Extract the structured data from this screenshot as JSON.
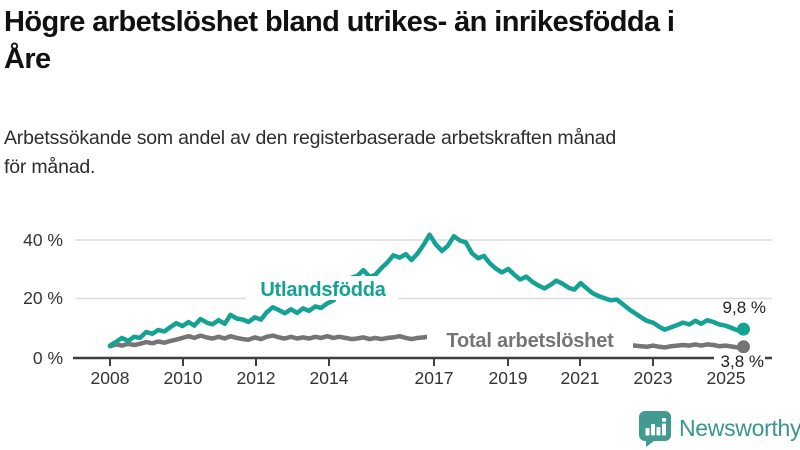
{
  "header": {
    "title_line1": "Högre arbetslöshet bland utrikes- än inrikesfödda i",
    "title_line2": "Åre",
    "subtitle_line1": "Arbetssökande som andel av den registerbaserade arbetskraften månad",
    "subtitle_line2": "för månad."
  },
  "chart_data": {
    "type": "line",
    "unit": "percent of registered labour force, monthly",
    "grid": "horizontal",
    "ylim": [
      0,
      45
    ],
    "xlim": [
      2007.8,
      2025.7
    ],
    "y_ticks": [
      {
        "label": "0 %",
        "value": 0
      },
      {
        "label": "20 %",
        "value": 20
      },
      {
        "label": "40 %",
        "value": 40
      }
    ],
    "x_ticks": [
      {
        "label": "2008",
        "year": 2008
      },
      {
        "label": "2010",
        "year": 2010
      },
      {
        "label": "2012",
        "year": 2012
      },
      {
        "label": "2014",
        "year": 2014
      },
      {
        "label": "2017",
        "year": 2017
      },
      {
        "label": "2019",
        "year": 2019
      },
      {
        "label": "2021",
        "year": 2021
      },
      {
        "label": "2023",
        "year": 2023
      },
      {
        "label": "2025",
        "year": 2025
      }
    ],
    "series": [
      {
        "id": "total",
        "name": "Total arbetslöshet",
        "color": "#757575",
        "end_label": "3,8 %",
        "end_value": 3.8,
        "points": [
          [
            2008,
            4
          ],
          [
            2008.17,
            4.6
          ],
          [
            2008.33,
            4.2
          ],
          [
            2008.5,
            4.8
          ],
          [
            2008.67,
            4.4
          ],
          [
            2008.83,
            4.8
          ],
          [
            2009,
            5.4
          ],
          [
            2009.17,
            5
          ],
          [
            2009.33,
            5.6
          ],
          [
            2009.5,
            5.2
          ],
          [
            2009.67,
            5.8
          ],
          [
            2009.83,
            6.2
          ],
          [
            2010,
            6.8
          ],
          [
            2010.17,
            7.4
          ],
          [
            2010.33,
            6.8
          ],
          [
            2010.5,
            7.6
          ],
          [
            2010.67,
            7
          ],
          [
            2010.83,
            6.6
          ],
          [
            2011,
            7.2
          ],
          [
            2011.17,
            6.6
          ],
          [
            2011.33,
            7.4
          ],
          [
            2011.5,
            6.8
          ],
          [
            2011.67,
            6.4
          ],
          [
            2011.83,
            6.2
          ],
          [
            2012,
            7
          ],
          [
            2012.17,
            6.4
          ],
          [
            2012.33,
            7.2
          ],
          [
            2012.5,
            7.6
          ],
          [
            2012.67,
            7
          ],
          [
            2012.83,
            6.6
          ],
          [
            2013,
            7.2
          ],
          [
            2013.17,
            6.6
          ],
          [
            2013.33,
            7
          ],
          [
            2013.5,
            6.6
          ],
          [
            2013.67,
            7.2
          ],
          [
            2013.83,
            6.8
          ],
          [
            2014,
            7.4
          ],
          [
            2014.17,
            6.8
          ],
          [
            2014.33,
            7.2
          ],
          [
            2014.5,
            6.8
          ],
          [
            2014.67,
            6.4
          ],
          [
            2014.83,
            6.6
          ],
          [
            2015,
            7
          ],
          [
            2015.17,
            6.4
          ],
          [
            2015.33,
            6.8
          ],
          [
            2015.5,
            6.4
          ],
          [
            2015.67,
            6.8
          ],
          [
            2015.83,
            7
          ],
          [
            2016,
            7.4
          ],
          [
            2016.17,
            6.8
          ],
          [
            2016.33,
            6.4
          ],
          [
            2016.5,
            6.8
          ],
          [
            2016.67,
            7
          ],
          [
            2016.83,
            7.4
          ],
          [
            2017,
            7
          ],
          [
            2017.17,
            6.6
          ],
          [
            2017.33,
            6.9
          ],
          [
            2017.5,
            6.5
          ],
          [
            2017.67,
            6.8
          ],
          [
            2017.83,
            6.4
          ],
          [
            2018,
            6.7
          ],
          [
            2018.17,
            6.3
          ],
          [
            2018.33,
            6.6
          ],
          [
            2018.5,
            6.2
          ],
          [
            2018.67,
            6.4
          ],
          [
            2018.83,
            6
          ],
          [
            2019,
            6.3
          ],
          [
            2019.17,
            5.9
          ],
          [
            2019.33,
            6.2
          ],
          [
            2019.5,
            5.8
          ],
          [
            2019.67,
            6
          ],
          [
            2019.83,
            5.8
          ],
          [
            2020,
            6
          ],
          [
            2020.17,
            6.4
          ],
          [
            2020.33,
            6.8
          ],
          [
            2020.5,
            6.4
          ],
          [
            2020.67,
            6
          ],
          [
            2020.83,
            5.8
          ],
          [
            2021,
            6
          ],
          [
            2021.17,
            5.7
          ],
          [
            2021.33,
            5.4
          ],
          [
            2021.5,
            5.2
          ],
          [
            2021.67,
            5
          ],
          [
            2021.83,
            4.8
          ],
          [
            2022,
            5
          ],
          [
            2022.17,
            4.7
          ],
          [
            2022.33,
            4.4
          ],
          [
            2022.5,
            4.2
          ],
          [
            2022.67,
            4
          ],
          [
            2022.83,
            3.8
          ],
          [
            2023,
            4.2
          ],
          [
            2023.17,
            3.8
          ],
          [
            2023.33,
            3.6
          ],
          [
            2023.5,
            4
          ],
          [
            2023.67,
            4.2
          ],
          [
            2023.83,
            4.4
          ],
          [
            2024,
            4.2
          ],
          [
            2024.17,
            4.6
          ],
          [
            2024.33,
            4.2
          ],
          [
            2024.5,
            4.6
          ],
          [
            2024.67,
            4.4
          ],
          [
            2024.83,
            4
          ],
          [
            2025,
            4.2
          ],
          [
            2025.17,
            3.9
          ],
          [
            2025.33,
            3.6
          ],
          [
            2025.5,
            3.8
          ]
        ]
      },
      {
        "id": "utlandsfodda",
        "name": "Utlandsfödda",
        "color": "#14a294",
        "end_label": "9,8 %",
        "end_value": 9.8,
        "points": [
          [
            2008,
            4.2
          ],
          [
            2008.17,
            5.5
          ],
          [
            2008.33,
            6.8
          ],
          [
            2008.5,
            5.8
          ],
          [
            2008.67,
            7.2
          ],
          [
            2008.83,
            6.8
          ],
          [
            2009,
            8.8
          ],
          [
            2009.17,
            8.2
          ],
          [
            2009.33,
            9.5
          ],
          [
            2009.5,
            9
          ],
          [
            2009.67,
            10.5
          ],
          [
            2009.83,
            11.8
          ],
          [
            2010,
            10.8
          ],
          [
            2010.17,
            12.2
          ],
          [
            2010.33,
            11
          ],
          [
            2010.5,
            13.2
          ],
          [
            2010.67,
            12
          ],
          [
            2010.83,
            11.4
          ],
          [
            2011,
            12.8
          ],
          [
            2011.17,
            11.6
          ],
          [
            2011.33,
            14.6
          ],
          [
            2011.5,
            13.4
          ],
          [
            2011.67,
            13
          ],
          [
            2011.83,
            12.2
          ],
          [
            2012,
            13.8
          ],
          [
            2012.17,
            13
          ],
          [
            2012.33,
            15.5
          ],
          [
            2012.5,
            17.2
          ],
          [
            2012.67,
            16.2
          ],
          [
            2012.83,
            15.2
          ],
          [
            2013,
            16.5
          ],
          [
            2013.17,
            15.3
          ],
          [
            2013.33,
            16.8
          ],
          [
            2013.5,
            16
          ],
          [
            2013.67,
            17.5
          ],
          [
            2013.83,
            17
          ],
          [
            2014,
            18.5
          ],
          [
            2014.17,
            19.5
          ],
          [
            2014.33,
            22.5
          ],
          [
            2014.5,
            25.5
          ],
          [
            2014.67,
            27.2
          ],
          [
            2014.83,
            27.8
          ],
          [
            2015,
            29.8
          ],
          [
            2015.17,
            27.5
          ],
          [
            2015.33,
            28.2
          ],
          [
            2015.5,
            30.5
          ],
          [
            2015.67,
            32.5
          ],
          [
            2015.83,
            34.8
          ],
          [
            2016,
            34
          ],
          [
            2016.17,
            35.2
          ],
          [
            2016.33,
            33.2
          ],
          [
            2016.5,
            35.5
          ],
          [
            2016.67,
            38.5
          ],
          [
            2016.83,
            41.8
          ],
          [
            2017,
            38.5
          ],
          [
            2017.17,
            36.3
          ],
          [
            2017.33,
            38
          ],
          [
            2017.5,
            41.3
          ],
          [
            2017.67,
            39.8
          ],
          [
            2017.83,
            39.2
          ],
          [
            2018,
            35.5
          ],
          [
            2018.17,
            33.8
          ],
          [
            2018.33,
            34.6
          ],
          [
            2018.5,
            32
          ],
          [
            2018.67,
            30.2
          ],
          [
            2018.83,
            29
          ],
          [
            2019,
            30.2
          ],
          [
            2019.17,
            28.2
          ],
          [
            2019.33,
            26.6
          ],
          [
            2019.5,
            27.6
          ],
          [
            2019.67,
            25.8
          ],
          [
            2019.83,
            24.6
          ],
          [
            2020,
            23.6
          ],
          [
            2020.17,
            24.8
          ],
          [
            2020.33,
            26.2
          ],
          [
            2020.5,
            25.2
          ],
          [
            2020.67,
            23.8
          ],
          [
            2020.83,
            23.2
          ],
          [
            2021,
            25.4
          ],
          [
            2021.17,
            23.6
          ],
          [
            2021.33,
            22
          ],
          [
            2021.5,
            21
          ],
          [
            2021.67,
            20.2
          ],
          [
            2021.83,
            19.6
          ],
          [
            2022,
            19.8
          ],
          [
            2022.17,
            18.2
          ],
          [
            2022.33,
            16.6
          ],
          [
            2022.5,
            15.2
          ],
          [
            2022.67,
            13.8
          ],
          [
            2022.83,
            12.6
          ],
          [
            2023,
            12
          ],
          [
            2023.17,
            10.6
          ],
          [
            2023.33,
            9.6
          ],
          [
            2023.5,
            10.4
          ],
          [
            2023.67,
            11.2
          ],
          [
            2023.83,
            12
          ],
          [
            2024,
            11.4
          ],
          [
            2024.17,
            12.6
          ],
          [
            2024.33,
            11.6
          ],
          [
            2024.5,
            12.8
          ],
          [
            2024.67,
            12.2
          ],
          [
            2024.83,
            11.4
          ],
          [
            2025,
            11
          ],
          [
            2025.17,
            10.2
          ],
          [
            2025.33,
            9.4
          ],
          [
            2025.5,
            9.8
          ]
        ]
      }
    ]
  },
  "footer": {
    "brand": "Newsworthy",
    "logo_icon": "bar-chart-pin-icon",
    "brand_color": "#3a958c"
  }
}
